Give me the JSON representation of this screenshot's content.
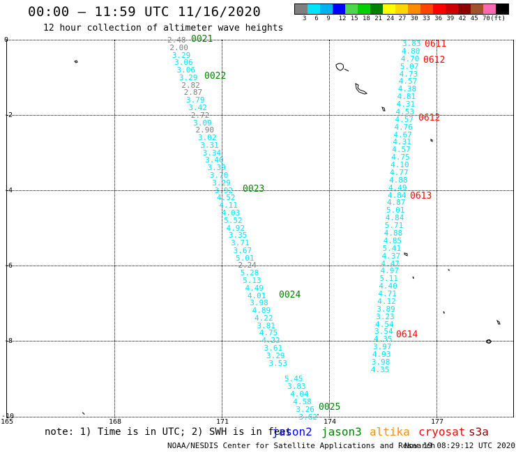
{
  "header": {
    "title": "00:00 – 11:59 UTC 11/16/2020",
    "subtitle": "12 hour collection of altimeter wave heights"
  },
  "colorbar": {
    "colors": [
      "#7f7f7f",
      "#00e5ff",
      "#00b2ee",
      "#0000ff",
      "#4fd64f",
      "#00d000",
      "#008000",
      "#ffff00",
      "#ffd700",
      "#ff8c00",
      "#ff4500",
      "#ff0000",
      "#cc0000",
      "#8b0000",
      "#a0522d",
      "#ff69b4",
      "#000000"
    ],
    "labels": [
      "3",
      "6",
      "9",
      "12",
      "15",
      "18",
      "21",
      "24",
      "27",
      "30",
      "33",
      "36",
      "39",
      "42",
      "45",
      "70",
      "(ft)"
    ]
  },
  "axes": {
    "lat_labels": [
      "0",
      "-2",
      "-4",
      "-6",
      "-8",
      "-10"
    ],
    "lon_labels": [
      "165",
      "168",
      "171",
      "174",
      "177"
    ]
  },
  "track1": {
    "values": [
      {
        "v": "2.48",
        "c": "#7f7f7f"
      },
      {
        "v": "2.00",
        "c": "#7f7f7f"
      },
      {
        "v": "3.29",
        "c": "#00e5ff"
      },
      {
        "v": "3.06",
        "c": "#00e5ff"
      },
      {
        "v": "3.06",
        "c": "#00e5ff"
      },
      {
        "v": "3.29",
        "c": "#00e5ff"
      },
      {
        "v": "2.82",
        "c": "#7f7f7f"
      },
      {
        "v": "2.87",
        "c": "#7f7f7f"
      },
      {
        "v": "3.79",
        "c": "#00e5ff"
      },
      {
        "v": "3.42",
        "c": "#00e5ff"
      },
      {
        "v": "2.72",
        "c": "#7f7f7f"
      },
      {
        "v": "3.09",
        "c": "#00e5ff"
      },
      {
        "v": "2.90",
        "c": "#7f7f7f"
      },
      {
        "v": "3.02",
        "c": "#00e5ff"
      },
      {
        "v": "3.31",
        "c": "#00e5ff"
      },
      {
        "v": "3.34",
        "c": "#00e5ff"
      },
      {
        "v": "3.40",
        "c": "#00e5ff"
      },
      {
        "v": "3.39",
        "c": "#00e5ff"
      },
      {
        "v": "3.70",
        "c": "#00e5ff"
      },
      {
        "v": "3.29",
        "c": "#00e5ff"
      },
      {
        "v": "3.92",
        "c": "#00e5ff"
      },
      {
        "v": "4.52",
        "c": "#00e5ff"
      },
      {
        "v": "4.11",
        "c": "#00e5ff"
      },
      {
        "v": "4.03",
        "c": "#00e5ff"
      },
      {
        "v": "5.52",
        "c": "#00e5ff"
      },
      {
        "v": "4.92",
        "c": "#00e5ff"
      },
      {
        "v": "3.35",
        "c": "#00e5ff"
      },
      {
        "v": "3.71",
        "c": "#00e5ff"
      },
      {
        "v": "3.67",
        "c": "#00e5ff"
      },
      {
        "v": "5.01",
        "c": "#00e5ff"
      },
      {
        "v": "2.24",
        "c": "#7f7f7f"
      },
      {
        "v": "5.28",
        "c": "#00e5ff"
      },
      {
        "v": "5.13",
        "c": "#00e5ff"
      },
      {
        "v": "4.49",
        "c": "#00e5ff"
      },
      {
        "v": "4.01",
        "c": "#00e5ff"
      },
      {
        "v": "3.98",
        "c": "#00e5ff"
      },
      {
        "v": "4.89",
        "c": "#00e5ff"
      },
      {
        "v": "4.22",
        "c": "#00e5ff"
      },
      {
        "v": "3.81",
        "c": "#00e5ff"
      },
      {
        "v": "4.75",
        "c": "#00e5ff"
      },
      {
        "v": "4.22",
        "c": "#00e5ff"
      },
      {
        "v": "3.61",
        "c": "#00e5ff"
      },
      {
        "v": "3.29",
        "c": "#00e5ff"
      },
      {
        "v": "3.53",
        "c": "#00e5ff"
      }
    ],
    "values_b": [
      {
        "v": "5.45",
        "c": "#00e5ff"
      },
      {
        "v": "3.83",
        "c": "#00e5ff"
      },
      {
        "v": "4.04",
        "c": "#00e5ff"
      },
      {
        "v": "4.58",
        "c": "#00e5ff"
      },
      {
        "v": "3.26",
        "c": "#00e5ff"
      },
      {
        "v": "3.62",
        "c": "#00e5ff"
      }
    ],
    "times": [
      "0021",
      "0022",
      "0023",
      "0024",
      "0025"
    ],
    "time_color": "#008000"
  },
  "track2": {
    "values": [
      "3.83",
      "4.80",
      "4.70",
      "5.07",
      "4.73",
      "4.57",
      "4.38",
      "4.81",
      "4.31",
      "4.53",
      "4.57",
      "4.76",
      "4.67",
      "4.31",
      "4.57",
      "4.75",
      "4.10",
      "4.77",
      "4.88",
      "4.49",
      "4.84",
      "4.87",
      "5.01",
      "4.84",
      "5.71",
      "4.88",
      "4.85",
      "5.41",
      "4.37",
      "4.47",
      "4.97",
      "5.11",
      "4.40",
      "4.71",
      "4.12",
      "3.89",
      "3.23",
      "4.54",
      "3.54",
      "4.35",
      "3.97",
      "4.93",
      "3.98",
      "4.35"
    ],
    "color": "#00e5ff",
    "times": [
      "0611",
      "0612",
      "0612",
      "0613",
      "0614"
    ],
    "time_color": "#ff0000"
  },
  "note": "note: 1) Time is in UTC; 2) SWH is in feet",
  "legend": [
    {
      "label": "jason2",
      "color": "#0000ff"
    },
    {
      "label": "jason3",
      "color": "#008000"
    },
    {
      "label": "altika",
      "color": "#ff8c00"
    },
    {
      "label": "cryosat",
      "color": "#ff0000"
    },
    {
      "label": "s3a",
      "color": "#8b0000"
    }
  ],
  "footer": {
    "center": "NOAA/NESDIS Center for Satellite Applications and Research",
    "timestamp": "Nov 19 08:29:12 UTC 2020"
  }
}
